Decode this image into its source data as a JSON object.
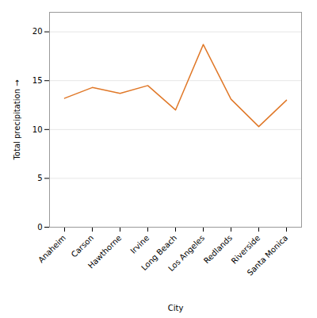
{
  "chart_data": {
    "type": "line",
    "xlabel": "City",
    "ylabel": "Total precipitation",
    "categories": [
      "Anaheim",
      "Carson",
      "Hawthorne",
      "Irvine",
      "Long Beach",
      "Los Angeles",
      "Redlands",
      "Riverside",
      "Santa Monica"
    ],
    "values": [
      13.2,
      14.3,
      13.7,
      14.5,
      12.0,
      18.7,
      13.1,
      10.3,
      13.0
    ],
    "color": "#E07828",
    "ylim": [
      0,
      22
    ],
    "yticks": [
      0,
      5,
      10,
      15,
      20
    ],
    "grid": true
  }
}
